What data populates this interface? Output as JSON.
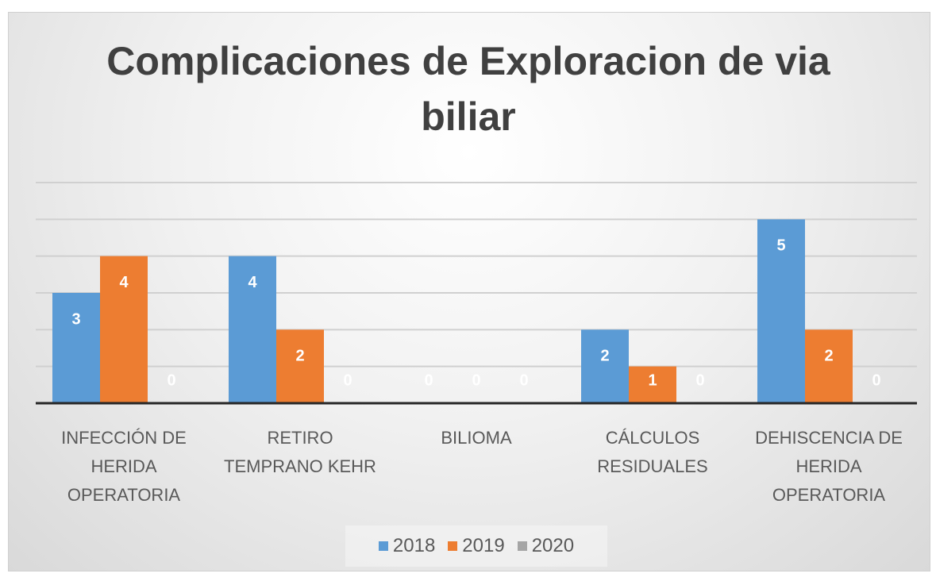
{
  "chart_data": {
    "type": "bar",
    "title": "Complicaciones de Exploracion de via biliar",
    "categories": [
      "INFECCIÓN DE HERIDA OPERATORIA",
      "RETIRO TEMPRANO KEHR",
      "BILIOMA",
      "CÁLCULOS RESIDUALES",
      "DEHISCENCIA DE HERIDA OPERATORIA"
    ],
    "series": [
      {
        "name": "2018",
        "color": "#5b9bd5",
        "values": [
          3,
          4,
          0,
          2,
          5
        ]
      },
      {
        "name": "2019",
        "color": "#ed7d31",
        "values": [
          4,
          2,
          0,
          1,
          2
        ]
      },
      {
        "name": "2020",
        "color": "#a5a5a5",
        "values": [
          0,
          0,
          0,
          0,
          0
        ]
      }
    ],
    "ylim": [
      0,
      6
    ],
    "yticks": [
      0,
      1,
      2,
      3,
      4,
      5,
      6
    ],
    "grid": true,
    "legend": "bottom"
  }
}
